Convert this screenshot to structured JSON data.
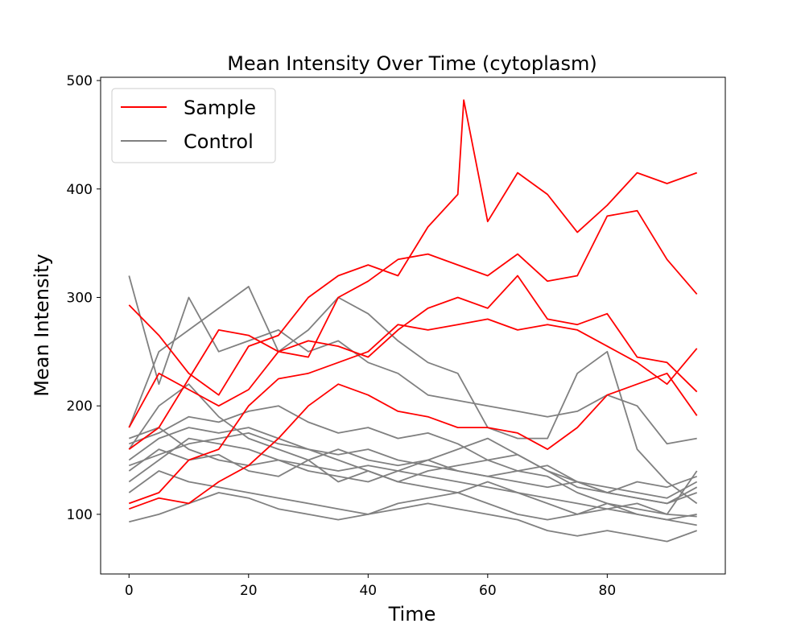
{
  "chart_data": {
    "type": "line",
    "title": "Mean Intensity Over Time (cytoplasm)",
    "xlabel": "Time",
    "ylabel": "Mean Intensity",
    "xlim": [
      -4.75,
      99.75
    ],
    "ylim": [
      45,
      503
    ],
    "xticks": [
      0,
      20,
      40,
      60,
      80
    ],
    "yticks": [
      100,
      200,
      300,
      400,
      500
    ],
    "grid": false,
    "legend": {
      "placement": "top-left",
      "entries": [
        {
          "label": "Sample",
          "color": "#ff0000"
        },
        {
          "label": "Control",
          "color": "#808080"
        }
      ]
    },
    "series": [
      {
        "group": "Sample",
        "color": "#ff0000",
        "x": [
          0,
          5,
          10,
          15,
          20,
          25,
          30,
          35,
          40,
          45,
          50,
          55,
          56,
          60,
          65,
          70,
          75,
          80,
          85,
          90,
          95
        ],
        "y": [
          293,
          265,
          230,
          210,
          255,
          265,
          300,
          320,
          330,
          320,
          365,
          395,
          482,
          370,
          415,
          395,
          360,
          385,
          415,
          405,
          415
        ]
      },
      {
        "group": "Sample",
        "color": "#ff0000",
        "x": [
          0,
          5,
          10,
          15,
          20,
          25,
          30,
          35,
          40,
          45,
          50,
          55,
          60,
          65,
          70,
          75,
          80,
          85,
          90,
          95
        ],
        "y": [
          160,
          180,
          225,
          270,
          265,
          250,
          245,
          300,
          315,
          335,
          340,
          330,
          320,
          340,
          315,
          320,
          375,
          380,
          335,
          303
        ]
      },
      {
        "group": "Sample",
        "color": "#ff0000",
        "x": [
          0,
          5,
          10,
          15,
          20,
          25,
          30,
          35,
          40,
          45,
          50,
          55,
          60,
          65,
          70,
          75,
          80,
          85,
          90,
          95
        ],
        "y": [
          180,
          230,
          215,
          200,
          215,
          250,
          260,
          255,
          245,
          270,
          290,
          300,
          290,
          320,
          280,
          275,
          285,
          245,
          240,
          213
        ]
      },
      {
        "group": "Sample",
        "color": "#ff0000",
        "x": [
          0,
          5,
          10,
          15,
          20,
          25,
          30,
          35,
          40,
          45,
          50,
          55,
          60,
          65,
          70,
          75,
          80,
          85,
          90,
          95
        ],
        "y": [
          110,
          120,
          150,
          160,
          200,
          225,
          230,
          240,
          250,
          275,
          270,
          275,
          280,
          270,
          275,
          270,
          255,
          240,
          220,
          253
        ]
      },
      {
        "group": "Sample",
        "color": "#ff0000",
        "x": [
          0,
          5,
          10,
          15,
          20,
          25,
          30,
          35,
          40,
          45,
          50,
          55,
          60,
          65,
          70,
          75,
          80,
          85,
          90,
          95
        ],
        "y": [
          105,
          115,
          110,
          130,
          145,
          170,
          200,
          220,
          210,
          195,
          190,
          180,
          180,
          175,
          160,
          180,
          210,
          220,
          230,
          191
        ]
      },
      {
        "group": "Control",
        "color": "#808080",
        "x": [
          0,
          5,
          10,
          15,
          20,
          25,
          30,
          35,
          40,
          45,
          50,
          55,
          60,
          65,
          70,
          75,
          80,
          85,
          90,
          95
        ],
        "y": [
          320,
          220,
          300,
          250,
          260,
          270,
          250,
          260,
          240,
          230,
          210,
          205,
          200,
          195,
          190,
          195,
          210,
          200,
          165,
          170
        ]
      },
      {
        "group": "Control",
        "color": "#808080",
        "x": [
          0,
          5,
          10,
          15,
          20,
          25,
          30,
          35,
          40,
          45,
          50,
          55,
          60,
          65,
          70,
          75,
          80,
          85,
          90,
          95
        ],
        "y": [
          180,
          250,
          270,
          290,
          310,
          250,
          270,
          300,
          285,
          260,
          240,
          230,
          180,
          170,
          170,
          230,
          250,
          160,
          130,
          110
        ]
      },
      {
        "group": "Control",
        "color": "#808080",
        "x": [
          0,
          5,
          10,
          15,
          20,
          25,
          30,
          35,
          40,
          45,
          50,
          55,
          60,
          65,
          70,
          75,
          80,
          85,
          90,
          95
        ],
        "y": [
          160,
          200,
          220,
          190,
          170,
          160,
          150,
          160,
          150,
          145,
          150,
          140,
          135,
          140,
          145,
          130,
          120,
          115,
          110,
          120
        ]
      },
      {
        "group": "Control",
        "color": "#808080",
        "x": [
          0,
          5,
          10,
          15,
          20,
          25,
          30,
          35,
          40,
          45,
          50,
          55,
          60,
          65,
          70,
          75,
          80,
          85,
          90,
          95
        ],
        "y": [
          140,
          160,
          150,
          155,
          140,
          135,
          150,
          130,
          140,
          130,
          125,
          120,
          130,
          120,
          110,
          100,
          110,
          100,
          95,
          100
        ]
      },
      {
        "group": "Control",
        "color": "#808080",
        "x": [
          0,
          5,
          10,
          15,
          20,
          25,
          30,
          35,
          40,
          45,
          50,
          55,
          60,
          65,
          70,
          75,
          80,
          85,
          90,
          95
        ],
        "y": [
          130,
          150,
          170,
          165,
          160,
          150,
          145,
          140,
          145,
          140,
          135,
          130,
          125,
          120,
          115,
          110,
          105,
          100,
          95,
          90
        ]
      },
      {
        "group": "Control",
        "color": "#808080",
        "x": [
          0,
          5,
          10,
          15,
          20,
          25,
          30,
          35,
          40,
          45,
          50,
          55,
          60,
          65,
          70,
          75,
          80,
          85,
          90,
          95
        ],
        "y": [
          150,
          170,
          180,
          175,
          180,
          170,
          160,
          150,
          140,
          130,
          140,
          145,
          150,
          155,
          140,
          130,
          125,
          120,
          115,
          130
        ]
      },
      {
        "group": "Control",
        "color": "#808080",
        "x": [
          0,
          5,
          10,
          15,
          20,
          25,
          30,
          35,
          40,
          45,
          50,
          55,
          60,
          65,
          70,
          75,
          80,
          85,
          90,
          95
        ],
        "y": [
          170,
          180,
          160,
          150,
          145,
          150,
          140,
          135,
          130,
          140,
          150,
          160,
          170,
          155,
          140,
          125,
          120,
          130,
          125,
          135
        ]
      },
      {
        "group": "Control",
        "color": "#808080",
        "x": [
          0,
          5,
          10,
          15,
          20,
          25,
          30,
          35,
          40,
          45,
          50,
          55,
          60,
          65,
          70,
          75,
          80,
          85,
          90,
          95
        ],
        "y": [
          120,
          140,
          130,
          125,
          120,
          115,
          110,
          105,
          100,
          110,
          115,
          120,
          110,
          100,
          95,
          100,
          105,
          110,
          100,
          98
        ]
      },
      {
        "group": "Control",
        "color": "#808080",
        "x": [
          0,
          5,
          10,
          15,
          20,
          25,
          30,
          35,
          40,
          45,
          50,
          55,
          60,
          65,
          70,
          75,
          80,
          85,
          90,
          95
        ],
        "y": [
          93,
          100,
          110,
          120,
          115,
          105,
          100,
          95,
          100,
          105,
          110,
          105,
          100,
          95,
          85,
          80,
          85,
          80,
          75,
          85
        ]
      },
      {
        "group": "Control",
        "color": "#808080",
        "x": [
          0,
          5,
          10,
          15,
          20,
          25,
          30,
          35,
          40,
          45,
          50,
          55,
          60,
          65,
          70,
          75,
          80,
          85,
          90,
          95
        ],
        "y": [
          145,
          155,
          165,
          170,
          175,
          165,
          160,
          155,
          160,
          150,
          145,
          140,
          135,
          130,
          125,
          130,
          120,
          115,
          110,
          125
        ]
      },
      {
        "group": "Control",
        "color": "#808080",
        "x": [
          0,
          5,
          10,
          15,
          20,
          25,
          30,
          35,
          40,
          45,
          50,
          55,
          60,
          65,
          70,
          75,
          80,
          85,
          90,
          95
        ],
        "y": [
          165,
          175,
          190,
          185,
          195,
          200,
          185,
          175,
          180,
          170,
          175,
          165,
          150,
          140,
          135,
          120,
          110,
          105,
          100,
          140
        ]
      }
    ]
  }
}
